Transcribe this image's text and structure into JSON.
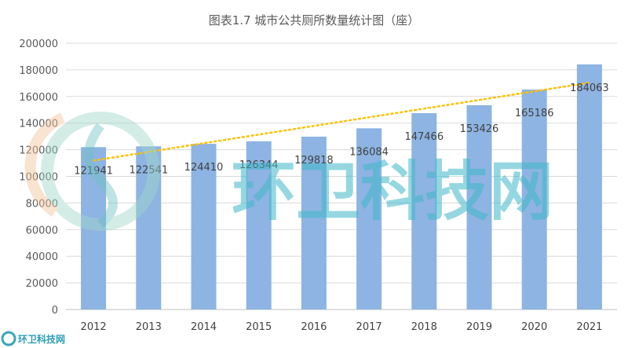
{
  "chart_data": {
    "type": "bar",
    "title": "图表1.7 城市公共厕所数量统计图（座）",
    "categories": [
      "2012",
      "2013",
      "2014",
      "2015",
      "2016",
      "2017",
      "2018",
      "2019",
      "2020",
      "2021"
    ],
    "values": [
      121941,
      122541,
      124410,
      126344,
      129818,
      136084,
      147466,
      153426,
      165186,
      184063
    ],
    "data_labels": [
      "121941",
      "122541",
      "124410",
      "126344",
      "129818",
      "136084",
      "147466",
      "153426",
      "165186",
      "184063"
    ],
    "ylim": [
      0,
      200000
    ],
    "yticks": [
      "0",
      "20000",
      "40000",
      "60000",
      "80000",
      "100000",
      "120000",
      "140000",
      "160000",
      "180000",
      "200000"
    ],
    "grid": true,
    "trendline": {
      "type": "linear",
      "style": "dotted"
    },
    "xlabel": "",
    "ylabel": "",
    "colors": {
      "bar": "#8DB4E2",
      "trendline": "#FFC000",
      "grid": "#D9D9D9",
      "text": "#595959"
    }
  },
  "watermark": {
    "text": "环卫科技网",
    "corner_text": "环卫科技网"
  }
}
